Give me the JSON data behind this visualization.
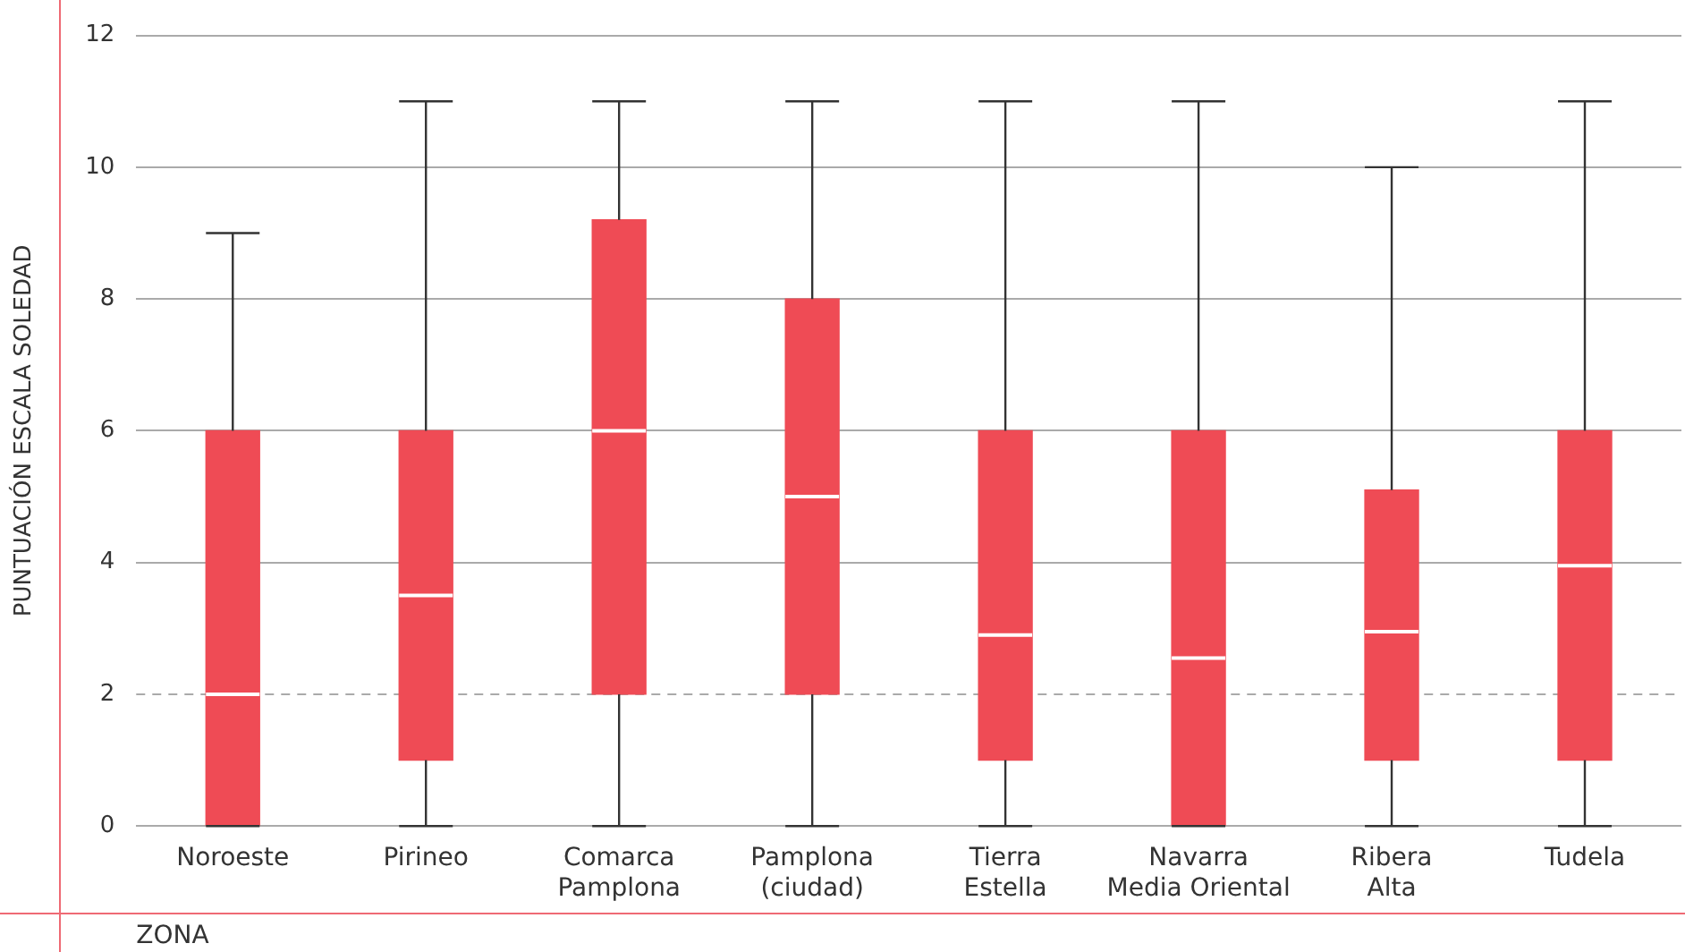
{
  "chart_data": {
    "type": "box",
    "xlabel": "ZONA",
    "ylabel": "PUNTUACIÓN ESCALA SOLEDAD",
    "categories": [
      "Noroeste",
      "Pirineo",
      "Comarca\nPamplona",
      "Pamplona\n(ciudad)",
      "Tierra\nEstella",
      "Navarra\nMedia Oriental",
      "Ribera\nAlta",
      "Tudela"
    ],
    "color": "#ef4b55",
    "boxes": [
      {
        "low": 0,
        "q1": 0,
        "median": 2,
        "q3": 6,
        "high": 9
      },
      {
        "low": 0,
        "q1": 1,
        "median": 3.5,
        "q3": 6,
        "high": 11
      },
      {
        "low": 0,
        "q1": 2,
        "median": 6,
        "q3": 9.2,
        "high": 11
      },
      {
        "low": 0,
        "q1": 2,
        "median": 5,
        "q3": 8,
        "high": 11
      },
      {
        "low": 0,
        "q1": 1,
        "median": 2.9,
        "q3": 6,
        "high": 11
      },
      {
        "low": 0,
        "q1": 0,
        "median": 2.55,
        "q3": 6,
        "high": 11
      },
      {
        "low": 0,
        "q1": 1,
        "median": 2.95,
        "q3": 5.1,
        "high": 10
      },
      {
        "low": 0,
        "q1": 1,
        "median": 3.95,
        "q3": 6,
        "high": 11
      }
    ],
    "ylim": [
      0,
      12
    ],
    "yticks": [
      0,
      2,
      4,
      6,
      8,
      10,
      12
    ],
    "grid": "y",
    "legend": false,
    "ref_lines": [
      {
        "axis": "y",
        "value": 2,
        "color": "#aaaaaa",
        "line_style": "dashed"
      }
    ]
  }
}
